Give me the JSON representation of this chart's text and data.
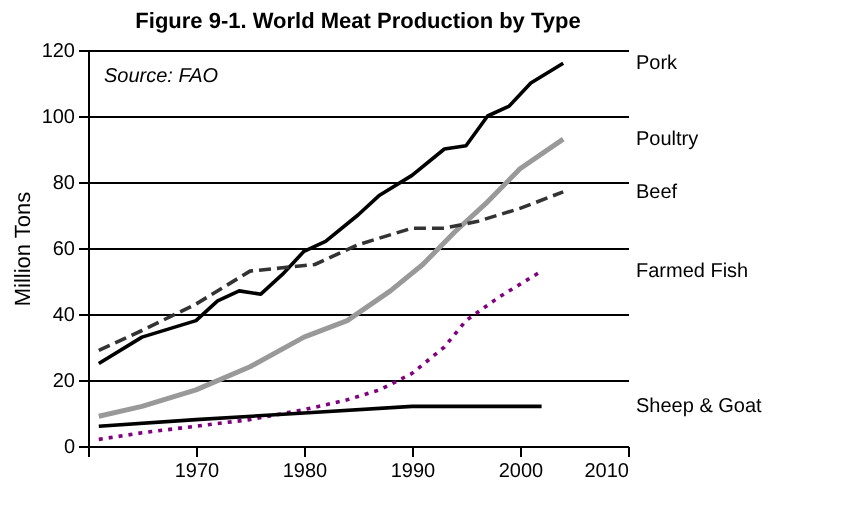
{
  "chart_data": {
    "type": "line",
    "title": "Figure 9-1. World Meat Production by Type",
    "ylabel": "Million Tons",
    "annotations": [
      "Source: FAO"
    ],
    "xlim": [
      1960,
      2010
    ],
    "xticks": [
      {
        "value": 1960,
        "label": null
      },
      1970,
      1980,
      1990,
      2000,
      2010
    ],
    "ylim": [
      0,
      120
    ],
    "yticks": [
      0,
      20,
      40,
      60,
      80,
      100,
      120
    ],
    "grid": "y",
    "marker": "none",
    "series": [
      {
        "name": "Pork",
        "color": "#000000",
        "line_style": "solid",
        "x": [
          1961,
          1965,
          1970,
          1972,
          1974,
          1976,
          1978,
          1980,
          1982,
          1985,
          1987,
          1990,
          1993,
          1995,
          1997,
          1999,
          2001,
          2004
        ],
        "values": [
          25,
          33,
          38,
          44,
          47,
          46,
          52,
          59,
          62,
          70,
          76,
          82,
          90,
          91,
          100,
          103,
          110,
          116
        ]
      },
      {
        "name": "Poultry",
        "color": "#999999",
        "line_style": "solid",
        "x": [
          1961,
          1965,
          1970,
          1975,
          1980,
          1984,
          1988,
          1991,
          1994,
          1997,
          2000,
          2004
        ],
        "values": [
          9,
          12,
          17,
          24,
          33,
          38,
          47,
          55,
          65,
          74,
          84,
          93
        ]
      },
      {
        "name": "Beef",
        "color": "#333333",
        "line_style": "dashed",
        "x": [
          1961,
          1965,
          1970,
          1975,
          1978,
          1981,
          1985,
          1990,
          1993,
          1996,
          2000,
          2004
        ],
        "values": [
          29,
          35,
          43,
          53,
          54,
          55,
          61,
          66,
          66,
          68,
          72,
          77
        ]
      },
      {
        "name": "Farmed Fish",
        "color": "#800080",
        "line_style": "dotted",
        "x": [
          1961,
          1965,
          1970,
          1975,
          1980,
          1984,
          1987,
          1990,
          1993,
          1995,
          1998,
          2002
        ],
        "values": [
          2,
          4,
          6,
          8,
          11,
          14,
          17,
          22,
          30,
          38,
          45,
          53
        ]
      },
      {
        "name": "Sheep & Goat",
        "color": "#000000",
        "line_style": "solid",
        "x": [
          1961,
          1970,
          1980,
          1990,
          2002
        ],
        "values": [
          6,
          8,
          10,
          12,
          12
        ]
      }
    ]
  }
}
